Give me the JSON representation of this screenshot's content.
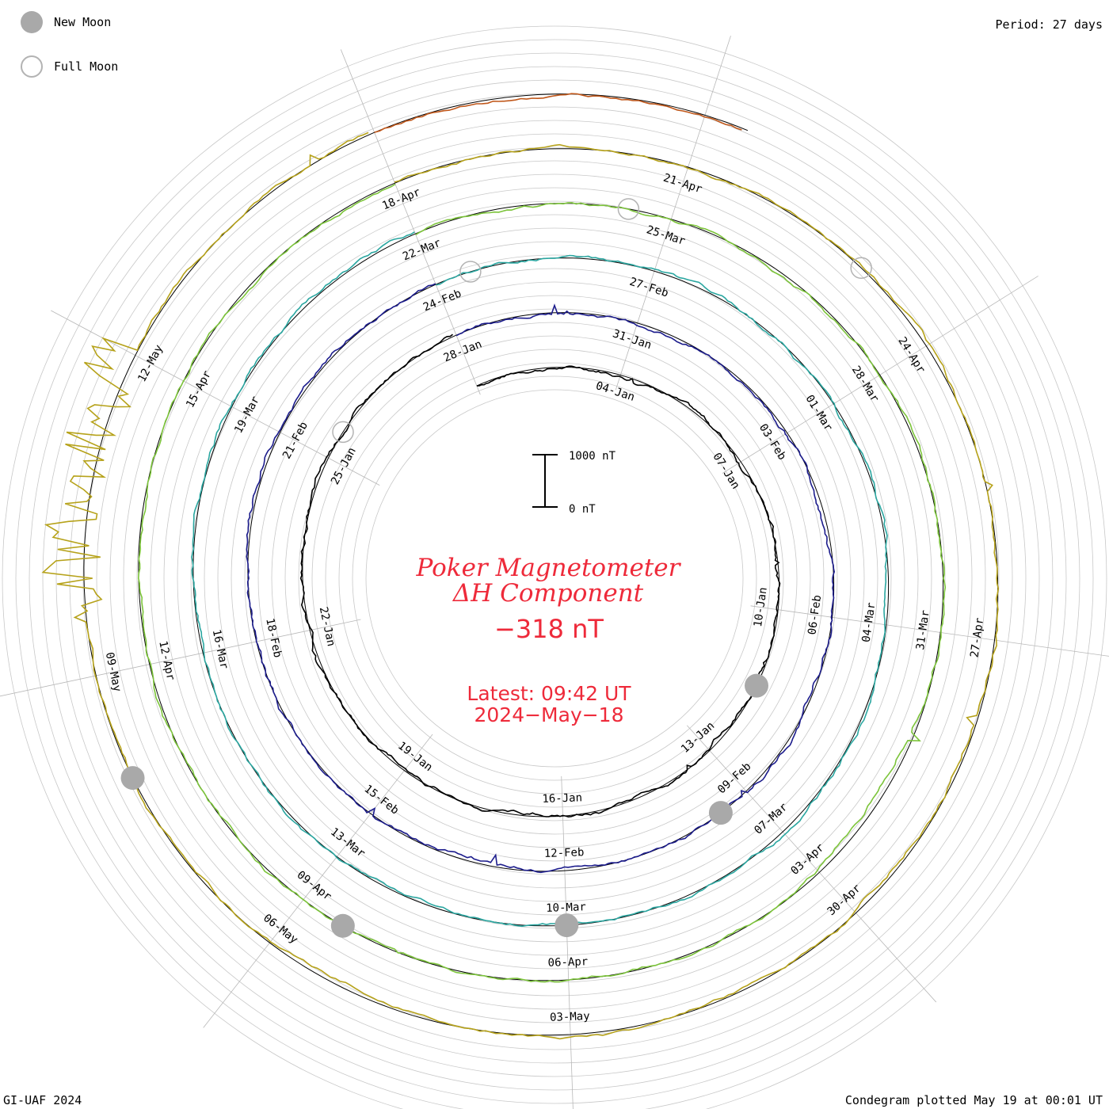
{
  "legend": {
    "new_moon_label": "New Moon",
    "full_moon_label": "Full Moon",
    "new_moon_color": "#a9a9a9",
    "full_moon_color": "#b3b3b3"
  },
  "period_label": "Period: 27 days",
  "footer_left": "GI-UAF 2024",
  "footer_right": "Condegram plotted May 19 at 00:01 UT",
  "title": {
    "line1": "Poker Magnetometer",
    "line2": "ΔH Component",
    "value": "−318 nT",
    "latest": "Latest: 09:42 UT",
    "date": "2024−May−18"
  },
  "scale_bar": {
    "top_label": "1000 nT",
    "bottom_label": "0 nT"
  },
  "chart_data": {
    "type": "line",
    "plot_kind": "condegram (spiral, 27-day period)",
    "quantity": "ΔH",
    "units": "nT",
    "period_days": 27,
    "start_date": "2024-01-01",
    "end_date": "2024-05-18",
    "latest_value_nT": -318,
    "series": [
      {
        "color": "#000000",
        "rotation": 1
      },
      {
        "color": "#1c1c8c",
        "rotation": 2
      },
      {
        "color": "#2aa6a0",
        "rotation": 3
      },
      {
        "color": "#7cc43a",
        "rotation": 4
      },
      {
        "color": "#b6a21a",
        "rotation": 5
      },
      {
        "color": "#c0571a",
        "rotation": 6
      }
    ],
    "date_labels": [
      {
        "text": "04-Jan",
        "day": 3
      },
      {
        "text": "07-Jan",
        "day": 6
      },
      {
        "text": "10-Jan",
        "day": 9
      },
      {
        "text": "13-Jan",
        "day": 12
      },
      {
        "text": "16-Jan",
        "day": 15
      },
      {
        "text": "19-Jan",
        "day": 18
      },
      {
        "text": "22-Jan",
        "day": 21
      },
      {
        "text": "25-Jan",
        "day": 24
      },
      {
        "text": "28-Jan",
        "day": 27
      },
      {
        "text": "31-Jan",
        "day": 30
      },
      {
        "text": "03-Feb",
        "day": 33
      },
      {
        "text": "06-Feb",
        "day": 36
      },
      {
        "text": "09-Feb",
        "day": 39
      },
      {
        "text": "12-Feb",
        "day": 42
      },
      {
        "text": "15-Feb",
        "day": 45
      },
      {
        "text": "18-Feb",
        "day": 48
      },
      {
        "text": "21-Feb",
        "day": 51
      },
      {
        "text": "24-Feb",
        "day": 54
      },
      {
        "text": "27-Feb",
        "day": 57
      },
      {
        "text": "01-Mar",
        "day": 60
      },
      {
        "text": "04-Mar",
        "day": 63
      },
      {
        "text": "07-Mar",
        "day": 66
      },
      {
        "text": "10-Mar",
        "day": 69
      },
      {
        "text": "13-Mar",
        "day": 72
      },
      {
        "text": "16-Mar",
        "day": 75
      },
      {
        "text": "19-Mar",
        "day": 78
      },
      {
        "text": "22-Mar",
        "day": 81
      },
      {
        "text": "25-Mar",
        "day": 84
      },
      {
        "text": "28-Mar",
        "day": 87
      },
      {
        "text": "31-Mar",
        "day": 90
      },
      {
        "text": "03-Apr",
        "day": 93
      },
      {
        "text": "06-Apr",
        "day": 96
      },
      {
        "text": "09-Apr",
        "day": 99
      },
      {
        "text": "12-Apr",
        "day": 102
      },
      {
        "text": "15-Apr",
        "day": 105
      },
      {
        "text": "18-Apr",
        "day": 108
      },
      {
        "text": "21-Apr",
        "day": 111
      },
      {
        "text": "24-Apr",
        "day": 114
      },
      {
        "text": "27-Apr",
        "day": 117
      },
      {
        "text": "30-Apr",
        "day": 120
      },
      {
        "text": "03-May",
        "day": 123
      },
      {
        "text": "06-May",
        "day": 126
      },
      {
        "text": "09-May",
        "day": 129
      },
      {
        "text": "12-May",
        "day": 132
      }
    ],
    "new_moons": [
      10.5,
      39.5,
      69.0,
      98.5,
      128.0
    ],
    "full_moons": [
      24.5,
      54.5,
      83.5,
      113.0
    ]
  }
}
